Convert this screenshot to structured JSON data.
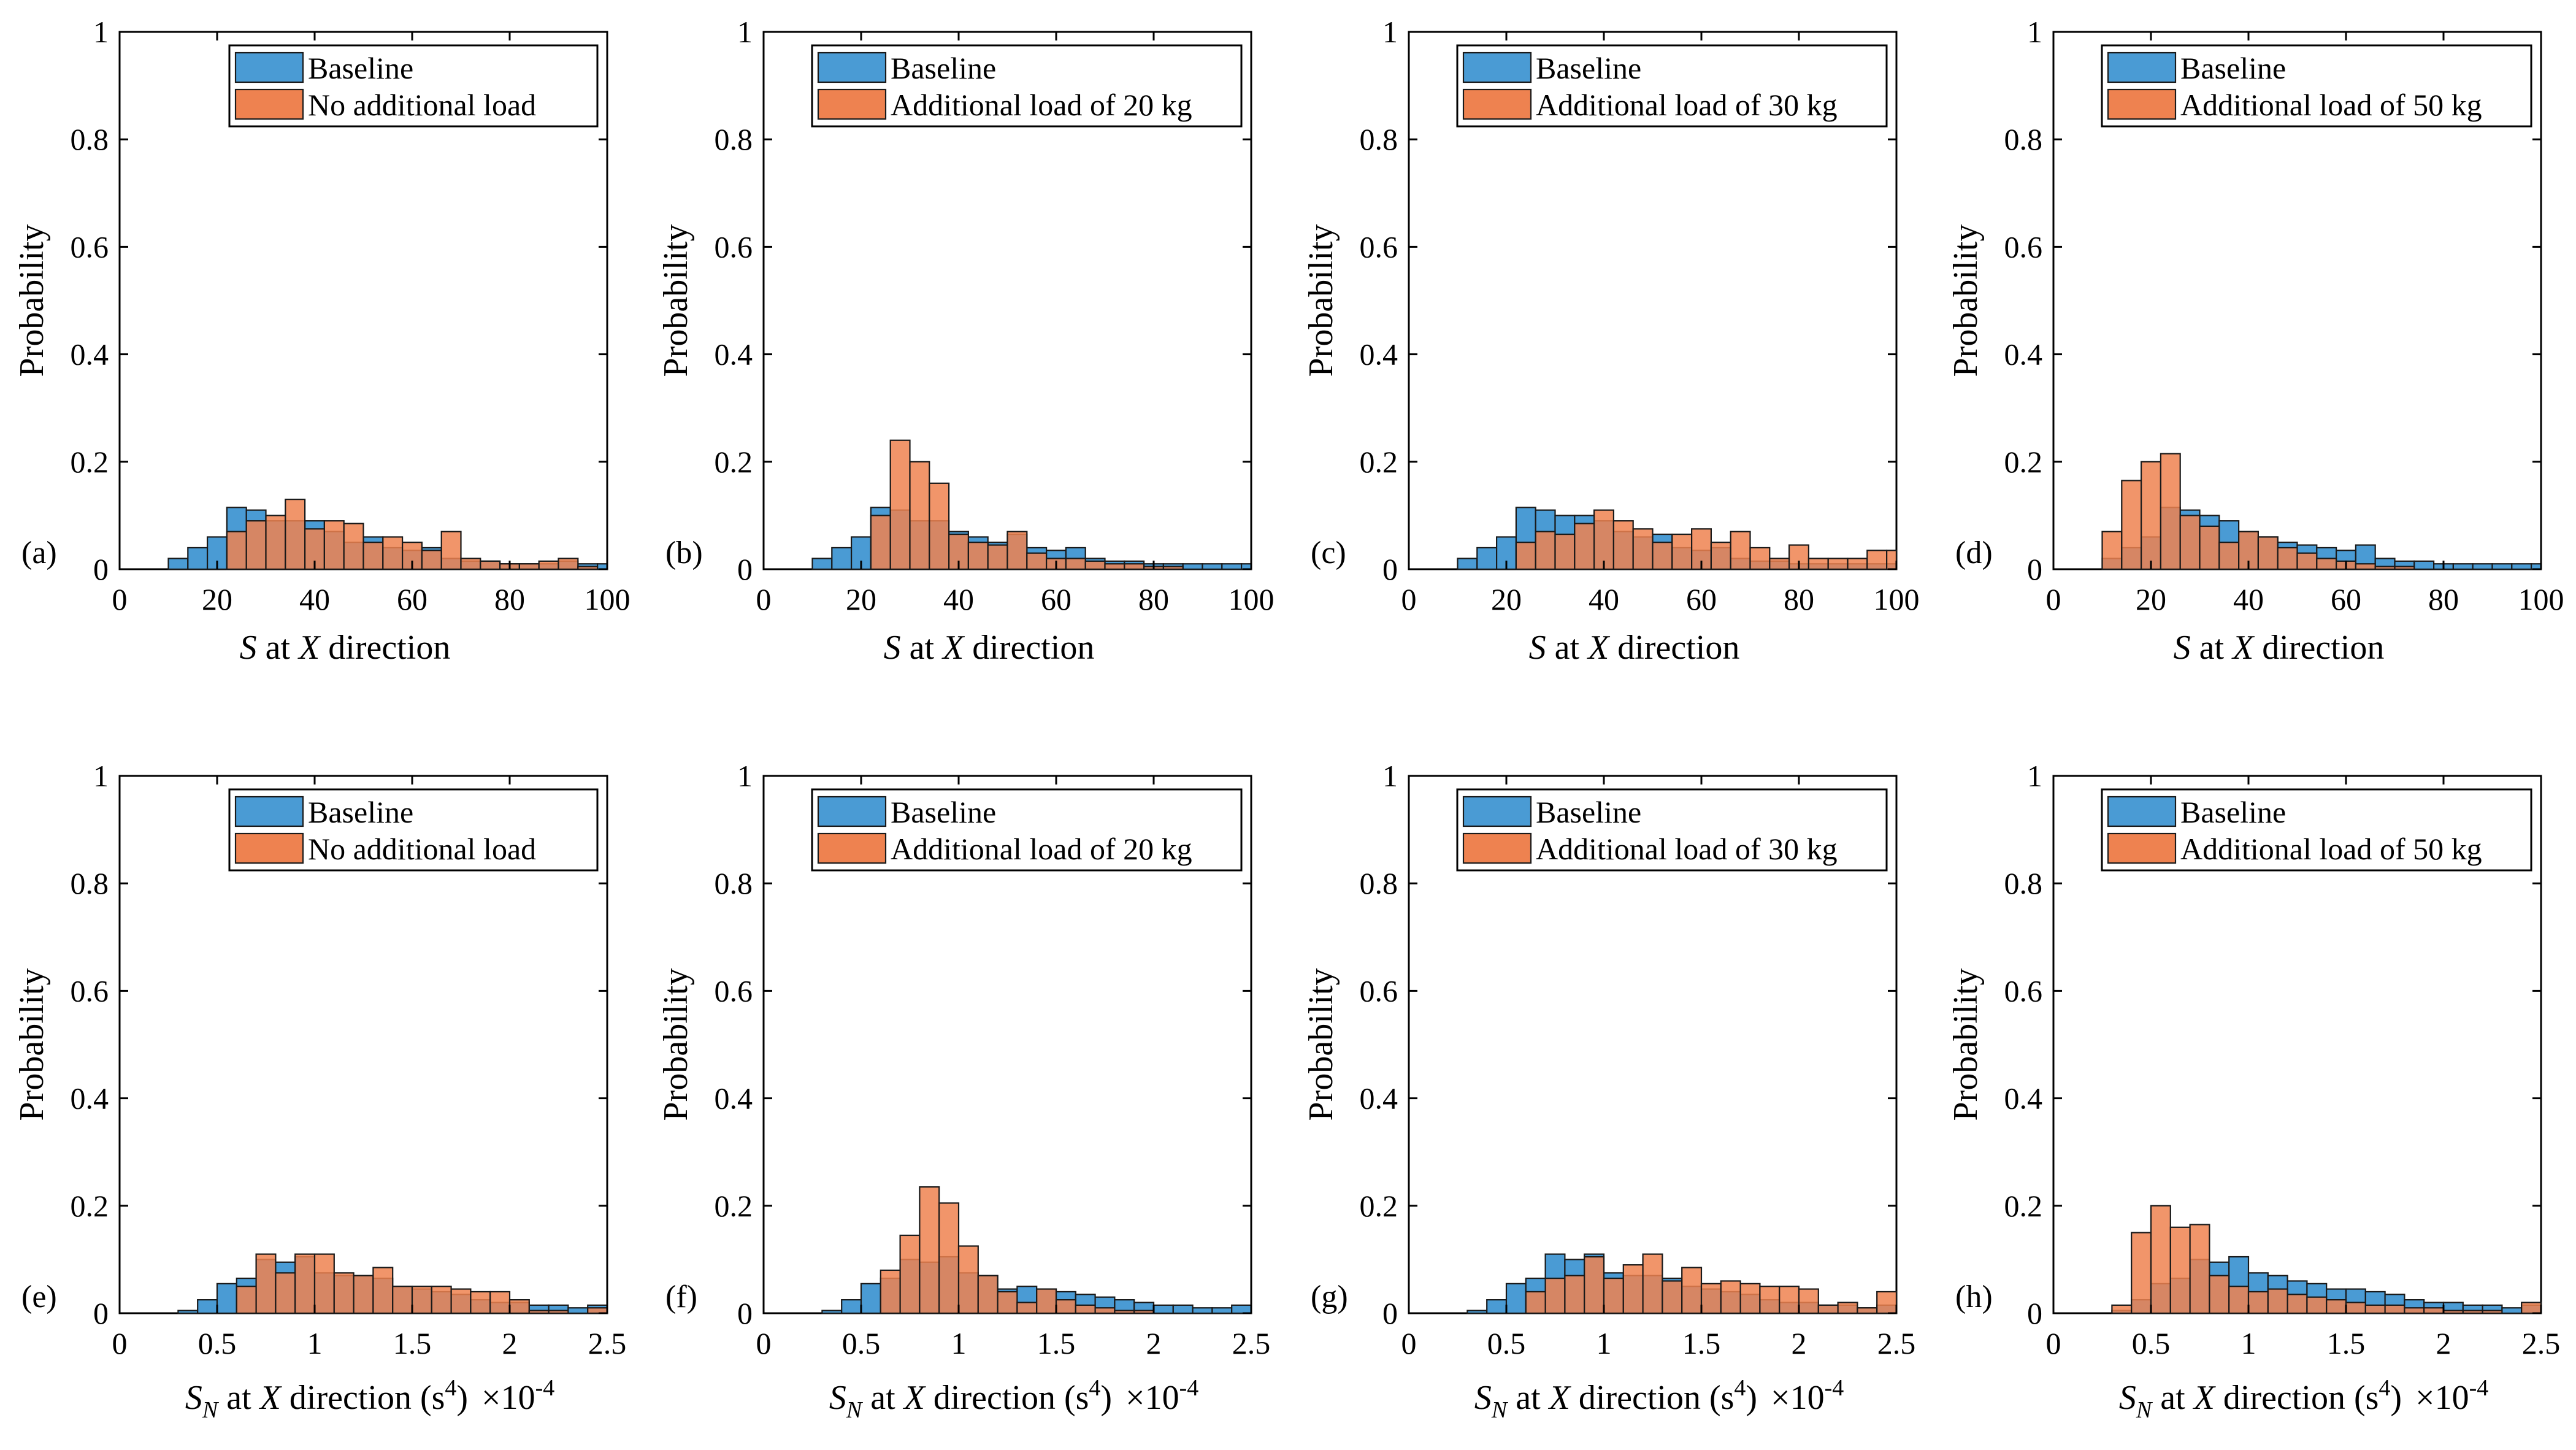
{
  "figure": {
    "ylabel": "Probability",
    "yticks": [
      "0",
      "0.2",
      "0.4",
      "0.6",
      "0.8",
      "1"
    ],
    "xticks_top": [
      "0",
      "20",
      "40",
      "60",
      "80",
      "100"
    ],
    "xticks_bottom": [
      "0",
      "0.5",
      "1",
      "1.5",
      "2",
      "2.5"
    ],
    "xlabel_top": {
      "italic_s": "S",
      "mid": " at ",
      "italic_x": "X",
      "end": " direction"
    },
    "xlabel_bottom": {
      "italic_s": "S",
      "sub": "N",
      "mid": " at ",
      "italic_x": "X",
      "dir": " direction (s",
      "sup": "4",
      "close": ")"
    },
    "exponent": {
      "base": "×10",
      "power": "-4"
    },
    "colors": {
      "baseline": "#4a9bd4",
      "load": "#ee8250"
    }
  },
  "chart_data": [
    {
      "id": "a",
      "label": "(a)",
      "type": "bar",
      "xlim": [
        0,
        100
      ],
      "ylim": [
        0,
        1
      ],
      "bin_start": 10,
      "bin_width": 4,
      "legend": [
        "Baseline",
        "No additional load"
      ],
      "series": [
        {
          "name": "Baseline",
          "values": [
            0.02,
            0.04,
            0.06,
            0.115,
            0.11,
            0.09,
            0.09,
            0.09,
            0.07,
            0.05,
            0.06,
            0.04,
            0.035,
            0.04,
            0.02,
            0.015,
            0.015,
            0.01,
            0.01,
            0.01,
            0.015,
            0.01,
            0.01
          ]
        },
        {
          "name": "No additional load",
          "values": [
            0.0,
            0.0,
            0.0,
            0.07,
            0.09,
            0.1,
            0.13,
            0.075,
            0.09,
            0.085,
            0.05,
            0.06,
            0.05,
            0.035,
            0.07,
            0.02,
            0.015,
            0.01,
            0.01,
            0.015,
            0.02,
            0.005,
            0.0
          ]
        }
      ]
    },
    {
      "id": "b",
      "label": "(b)",
      "type": "bar",
      "xlim": [
        0,
        100
      ],
      "ylim": [
        0,
        1
      ],
      "bin_start": 10,
      "bin_width": 4,
      "legend": [
        "Baseline",
        "Additional load of 20 kg"
      ],
      "series": [
        {
          "name": "Baseline",
          "values": [
            0.02,
            0.04,
            0.06,
            0.115,
            0.11,
            0.09,
            0.09,
            0.07,
            0.06,
            0.05,
            0.065,
            0.04,
            0.035,
            0.04,
            0.02,
            0.015,
            0.015,
            0.01,
            0.01,
            0.01,
            0.01,
            0.01,
            0.01
          ]
        },
        {
          "name": "Additional load of 20 kg",
          "values": [
            0.0,
            0.0,
            0.0,
            0.1,
            0.24,
            0.2,
            0.16,
            0.065,
            0.05,
            0.045,
            0.07,
            0.03,
            0.02,
            0.02,
            0.015,
            0.01,
            0.01,
            0.005,
            0.005,
            0.0,
            0.0,
            0.0,
            0.0
          ]
        }
      ]
    },
    {
      "id": "c",
      "label": "(c)",
      "type": "bar",
      "xlim": [
        0,
        100
      ],
      "ylim": [
        0,
        1
      ],
      "bin_start": 10,
      "bin_width": 4,
      "legend": [
        "Baseline",
        "Additional load of 30 kg"
      ],
      "series": [
        {
          "name": "Baseline",
          "values": [
            0.02,
            0.04,
            0.06,
            0.115,
            0.11,
            0.1,
            0.1,
            0.09,
            0.07,
            0.06,
            0.065,
            0.04,
            0.035,
            0.04,
            0.02,
            0.015,
            0.015,
            0.01,
            0.01,
            0.01,
            0.01,
            0.01,
            0.01
          ]
        },
        {
          "name": "Additional load of 30 kg",
          "values": [
            0.0,
            0.0,
            0.0,
            0.05,
            0.07,
            0.065,
            0.085,
            0.11,
            0.09,
            0.075,
            0.05,
            0.065,
            0.075,
            0.05,
            0.07,
            0.04,
            0.02,
            0.045,
            0.02,
            0.02,
            0.02,
            0.035,
            0.035
          ]
        }
      ]
    },
    {
      "id": "d",
      "label": "(d)",
      "type": "bar",
      "xlim": [
        0,
        100
      ],
      "ylim": [
        0,
        1
      ],
      "bin_start": 10,
      "bin_width": 4,
      "legend": [
        "Baseline",
        "Additional load of 50 kg"
      ],
      "series": [
        {
          "name": "Baseline",
          "values": [
            0.02,
            0.04,
            0.06,
            0.115,
            0.11,
            0.1,
            0.09,
            0.07,
            0.06,
            0.05,
            0.045,
            0.04,
            0.035,
            0.045,
            0.02,
            0.015,
            0.015,
            0.01,
            0.01,
            0.01,
            0.01,
            0.01,
            0.01
          ]
        },
        {
          "name": "Additional load of 50 kg",
          "values": [
            0.07,
            0.165,
            0.2,
            0.215,
            0.1,
            0.08,
            0.05,
            0.07,
            0.06,
            0.04,
            0.03,
            0.02,
            0.015,
            0.01,
            0.005,
            0.005,
            0.0,
            0.0,
            0.0,
            0.0,
            0.0,
            0.0,
            0.0
          ]
        }
      ]
    },
    {
      "id": "e",
      "label": "(e)",
      "type": "bar",
      "xlim": [
        0,
        2.5
      ],
      "ylim": [
        0,
        1
      ],
      "bin_start": 0.3,
      "bin_width": 0.1,
      "legend": [
        "Baseline",
        "No additional load"
      ],
      "series": [
        {
          "name": "Baseline",
          "values": [
            0.005,
            0.025,
            0.055,
            0.065,
            0.1,
            0.095,
            0.105,
            0.075,
            0.07,
            0.07,
            0.065,
            0.05,
            0.045,
            0.04,
            0.035,
            0.025,
            0.02,
            0.02,
            0.015,
            0.015,
            0.01,
            0.015
          ]
        },
        {
          "name": "No additional load",
          "values": [
            0.0,
            0.0,
            0.0,
            0.05,
            0.11,
            0.075,
            0.11,
            0.11,
            0.075,
            0.07,
            0.085,
            0.05,
            0.05,
            0.05,
            0.045,
            0.04,
            0.04,
            0.025,
            0.005,
            0.005,
            0.0,
            0.01
          ]
        }
      ]
    },
    {
      "id": "f",
      "label": "(f)",
      "type": "bar",
      "xlim": [
        0,
        2.5
      ],
      "ylim": [
        0,
        1
      ],
      "bin_start": 0.3,
      "bin_width": 0.1,
      "legend": [
        "Baseline",
        "Additional load of 20 kg"
      ],
      "series": [
        {
          "name": "Baseline",
          "values": [
            0.005,
            0.025,
            0.055,
            0.065,
            0.1,
            0.095,
            0.105,
            0.075,
            0.07,
            0.045,
            0.05,
            0.045,
            0.04,
            0.035,
            0.03,
            0.025,
            0.02,
            0.015,
            0.015,
            0.01,
            0.01,
            0.015
          ]
        },
        {
          "name": "Additional load of 20 kg",
          "values": [
            0.0,
            0.0,
            0.0,
            0.08,
            0.145,
            0.235,
            0.205,
            0.125,
            0.07,
            0.04,
            0.02,
            0.045,
            0.025,
            0.015,
            0.01,
            0.005,
            0.005,
            0.0,
            0.0,
            0.0,
            0.0,
            0.0
          ]
        }
      ]
    },
    {
      "id": "g",
      "label": "(g)",
      "type": "bar",
      "xlim": [
        0,
        2.5
      ],
      "ylim": [
        0,
        1
      ],
      "bin_start": 0.3,
      "bin_width": 0.1,
      "legend": [
        "Baseline",
        "Additional load of 30 kg"
      ],
      "series": [
        {
          "name": "Baseline",
          "values": [
            0.005,
            0.025,
            0.055,
            0.065,
            0.11,
            0.1,
            0.11,
            0.075,
            0.07,
            0.07,
            0.065,
            0.05,
            0.045,
            0.04,
            0.035,
            0.025,
            0.02,
            0.02,
            0.015,
            0.015,
            0.01,
            0.015
          ]
        },
        {
          "name": "Additional load of 30 kg",
          "values": [
            0.0,
            0.0,
            0.0,
            0.04,
            0.065,
            0.07,
            0.105,
            0.065,
            0.09,
            0.11,
            0.06,
            0.085,
            0.055,
            0.06,
            0.055,
            0.05,
            0.05,
            0.045,
            0.015,
            0.02,
            0.01,
            0.04
          ]
        }
      ]
    },
    {
      "id": "h",
      "label": "(h)",
      "type": "bar",
      "xlim": [
        0,
        2.5
      ],
      "ylim": [
        0,
        1
      ],
      "bin_start": 0.3,
      "bin_width": 0.1,
      "legend": [
        "Baseline",
        "Additional load of 50 kg"
      ],
      "series": [
        {
          "name": "Baseline",
          "values": [
            0.005,
            0.025,
            0.055,
            0.065,
            0.1,
            0.095,
            0.105,
            0.075,
            0.07,
            0.06,
            0.055,
            0.045,
            0.045,
            0.04,
            0.035,
            0.025,
            0.02,
            0.02,
            0.015,
            0.015,
            0.01,
            0.015
          ]
        },
        {
          "name": "Additional load of 50 kg",
          "values": [
            0.015,
            0.15,
            0.2,
            0.16,
            0.165,
            0.07,
            0.05,
            0.04,
            0.045,
            0.035,
            0.03,
            0.025,
            0.02,
            0.015,
            0.015,
            0.01,
            0.01,
            0.005,
            0.005,
            0.005,
            0.0,
            0.02
          ]
        }
      ]
    }
  ]
}
